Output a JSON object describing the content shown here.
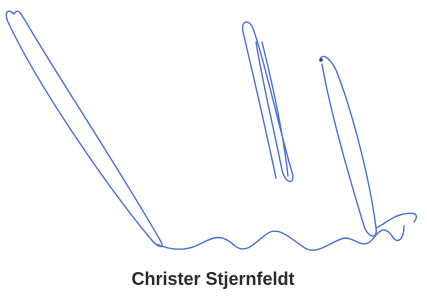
{
  "signature": {
    "name": "Christer Stjernfeldt"
  }
}
